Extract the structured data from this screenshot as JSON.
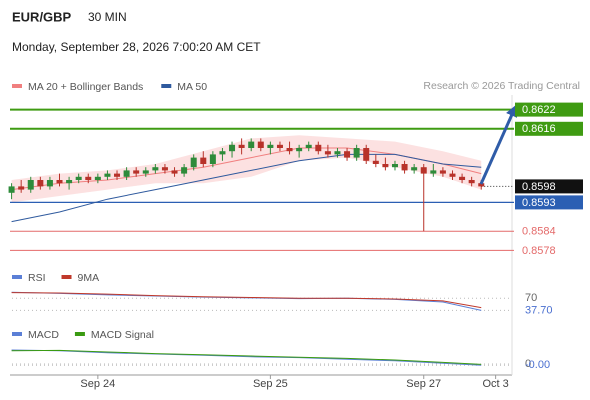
{
  "chart_data": {
    "type": "candlestick",
    "title": "EUR/GBP",
    "timeframe": "30 MIN",
    "timestamp": "Monday, September 28, 2026 7:00:20 AM CET",
    "credit": "Research © 2026 Trading Central",
    "xlim": [
      -1,
      52
    ],
    "xticks": [
      {
        "value": 9,
        "label": "Sep 24"
      },
      {
        "value": 27,
        "label": "Sep 25"
      },
      {
        "value": 43,
        "label": "Sep 27"
      },
      {
        "value": 50.5,
        "label": "Oct 3"
      }
    ],
    "ylim": [
      0.8575,
      0.8625
    ],
    "up_color": "#2e8b3a",
    "down_color": "#b8322a",
    "open": [
      0.8596,
      0.8598,
      0.8597,
      0.86,
      0.8598,
      0.86,
      0.8599,
      0.86,
      0.8601,
      0.86,
      0.8601,
      0.8602,
      0.8601,
      0.8603,
      0.8602,
      0.8603,
      0.8604,
      0.8603,
      0.8602,
      0.8604,
      0.8607,
      0.8605,
      0.8608,
      0.8609,
      0.8611,
      0.861,
      0.8612,
      0.861,
      0.8611,
      0.861,
      0.8609,
      0.861,
      0.8611,
      0.8609,
      0.8608,
      0.8609,
      0.8607,
      0.861,
      0.8606,
      0.8605,
      0.8604,
      0.8605,
      0.8603,
      0.8604,
      0.8602,
      0.8603,
      0.8602,
      0.8601,
      0.86,
      0.8599
    ],
    "high": [
      0.8599,
      0.86,
      0.8601,
      0.8601,
      0.8601,
      0.8602,
      0.8601,
      0.8602,
      0.8602,
      0.8602,
      0.8603,
      0.8603,
      0.8604,
      0.8604,
      0.8604,
      0.8605,
      0.8605,
      0.8604,
      0.8605,
      0.8608,
      0.8609,
      0.8609,
      0.861,
      0.8612,
      0.8613,
      0.8613,
      0.8613,
      0.8612,
      0.8612,
      0.8612,
      0.8611,
      0.8612,
      0.8612,
      0.8611,
      0.861,
      0.861,
      0.8611,
      0.8611,
      0.8608,
      0.8607,
      0.8606,
      0.8606,
      0.8605,
      0.8605,
      0.8605,
      0.8604,
      0.8603,
      0.8602,
      0.8601,
      0.86
    ],
    "low": [
      0.8594,
      0.8596,
      0.8596,
      0.8597,
      0.8597,
      0.8598,
      0.8597,
      0.8599,
      0.8599,
      0.8599,
      0.86,
      0.86,
      0.86,
      0.8601,
      0.8601,
      0.8602,
      0.8602,
      0.8601,
      0.8601,
      0.8603,
      0.8604,
      0.8604,
      0.8606,
      0.8607,
      0.8608,
      0.8609,
      0.8609,
      0.8608,
      0.8609,
      0.8608,
      0.8607,
      0.8609,
      0.8608,
      0.8607,
      0.8607,
      0.8606,
      0.8606,
      0.8605,
      0.8604,
      0.8603,
      0.8603,
      0.8602,
      0.8602,
      0.8584,
      0.8601,
      0.8601,
      0.86,
      0.8599,
      0.8598,
      0.8597
    ],
    "close": [
      0.8598,
      0.8597,
      0.86,
      0.8598,
      0.86,
      0.8599,
      0.86,
      0.8601,
      0.86,
      0.8601,
      0.8602,
      0.8601,
      0.8603,
      0.8602,
      0.8603,
      0.8604,
      0.8603,
      0.8602,
      0.8604,
      0.8607,
      0.8605,
      0.8608,
      0.8609,
      0.8611,
      0.861,
      0.8612,
      0.861,
      0.8611,
      0.861,
      0.8609,
      0.861,
      0.8611,
      0.8609,
      0.8608,
      0.8609,
      0.8607,
      0.861,
      0.8606,
      0.8605,
      0.8604,
      0.8605,
      0.8603,
      0.8604,
      0.8602,
      0.8603,
      0.8602,
      0.8601,
      0.86,
      0.8599,
      0.8598
    ],
    "overlay_x": [
      0,
      5,
      10,
      15,
      20,
      25,
      30,
      35,
      40,
      45,
      49
    ],
    "overlays": [
      {
        "name": "MA 20 + Bollinger Bands",
        "color": "#f07f7f",
        "band_color": "#fbd9d9",
        "values": [
          0.8597,
          0.8599,
          0.86,
          0.8602,
          0.8604,
          0.8607,
          0.861,
          0.861,
          0.8608,
          0.8605,
          0.8602
        ],
        "upper": [
          0.86,
          0.8602,
          0.8603,
          0.8605,
          0.8609,
          0.8613,
          0.8614,
          0.8613,
          0.8612,
          0.8609,
          0.8606
        ],
        "lower": [
          0.8593,
          0.8595,
          0.8597,
          0.8599,
          0.8599,
          0.8601,
          0.8606,
          0.8607,
          0.8604,
          0.8601,
          0.8597
        ]
      },
      {
        "name": "MA 50",
        "color": "#2f5a9e",
        "values": [
          0.8587,
          0.859,
          0.8594,
          0.8597,
          0.86,
          0.8603,
          0.8606,
          0.8608,
          0.8608,
          0.8605,
          0.8604
        ]
      }
    ],
    "levels": [
      {
        "value": 0.8622,
        "color": "#3f9b12",
        "style": "box"
      },
      {
        "value": 0.8616,
        "color": "#3f9b12",
        "style": "box"
      },
      {
        "value": 0.8598,
        "color": "#111111",
        "style": "current"
      },
      {
        "value": 0.8593,
        "color": "#2b5fb3",
        "style": "box"
      },
      {
        "value": 0.8584,
        "color": "#e46a6a",
        "style": "text"
      },
      {
        "value": 0.8578,
        "color": "#e46a6a",
        "style": "text"
      }
    ],
    "panels": [
      {
        "ylim": [
          20,
          100
        ],
        "yticks": [
          70,
          {
            "value": 37.7,
            "label": "37.70"
          }
        ],
        "last_color": "#4a6fd0",
        "x": [
          0,
          5,
          10,
          15,
          20,
          25,
          30,
          35,
          40,
          45,
          49
        ],
        "series": [
          {
            "name": "RSI",
            "color": "#5b7fd6",
            "values": [
              86,
              83,
              79,
              76,
              73,
              71,
              69,
              70,
              67,
              60,
              37.7
            ]
          },
          {
            "name": "9MA",
            "color": "#c0392b",
            "values": [
              85,
              84,
              81,
              77,
              74,
              72,
              70,
              70,
              68,
              63,
              45
            ]
          }
        ]
      },
      {
        "ylim": [
          -0.0002,
          0.0006
        ],
        "yticks": [
          0,
          {
            "value": -3e-05,
            "label": "-0.00"
          }
        ],
        "last_color": "#4a6fd0",
        "x": [
          0,
          5,
          10,
          15,
          20,
          25,
          30,
          35,
          40,
          45,
          49
        ],
        "series": [
          {
            "name": "MACD",
            "color": "#5b7fd6",
            "values": [
              0.00035,
              0.00033,
              0.00028,
              0.00025,
              0.00022,
              0.00018,
              0.00016,
              0.00012,
              8e-05,
              2e-05,
              -3e-05
            ]
          },
          {
            "name": "MACD Signal",
            "color": "#3a9b12",
            "values": [
              0.00033,
              0.00034,
              0.0003,
              0.00026,
              0.00023,
              0.0002,
              0.00017,
              0.00014,
              0.0001,
              4e-05,
              -1e-05
            ]
          }
        ]
      }
    ]
  }
}
